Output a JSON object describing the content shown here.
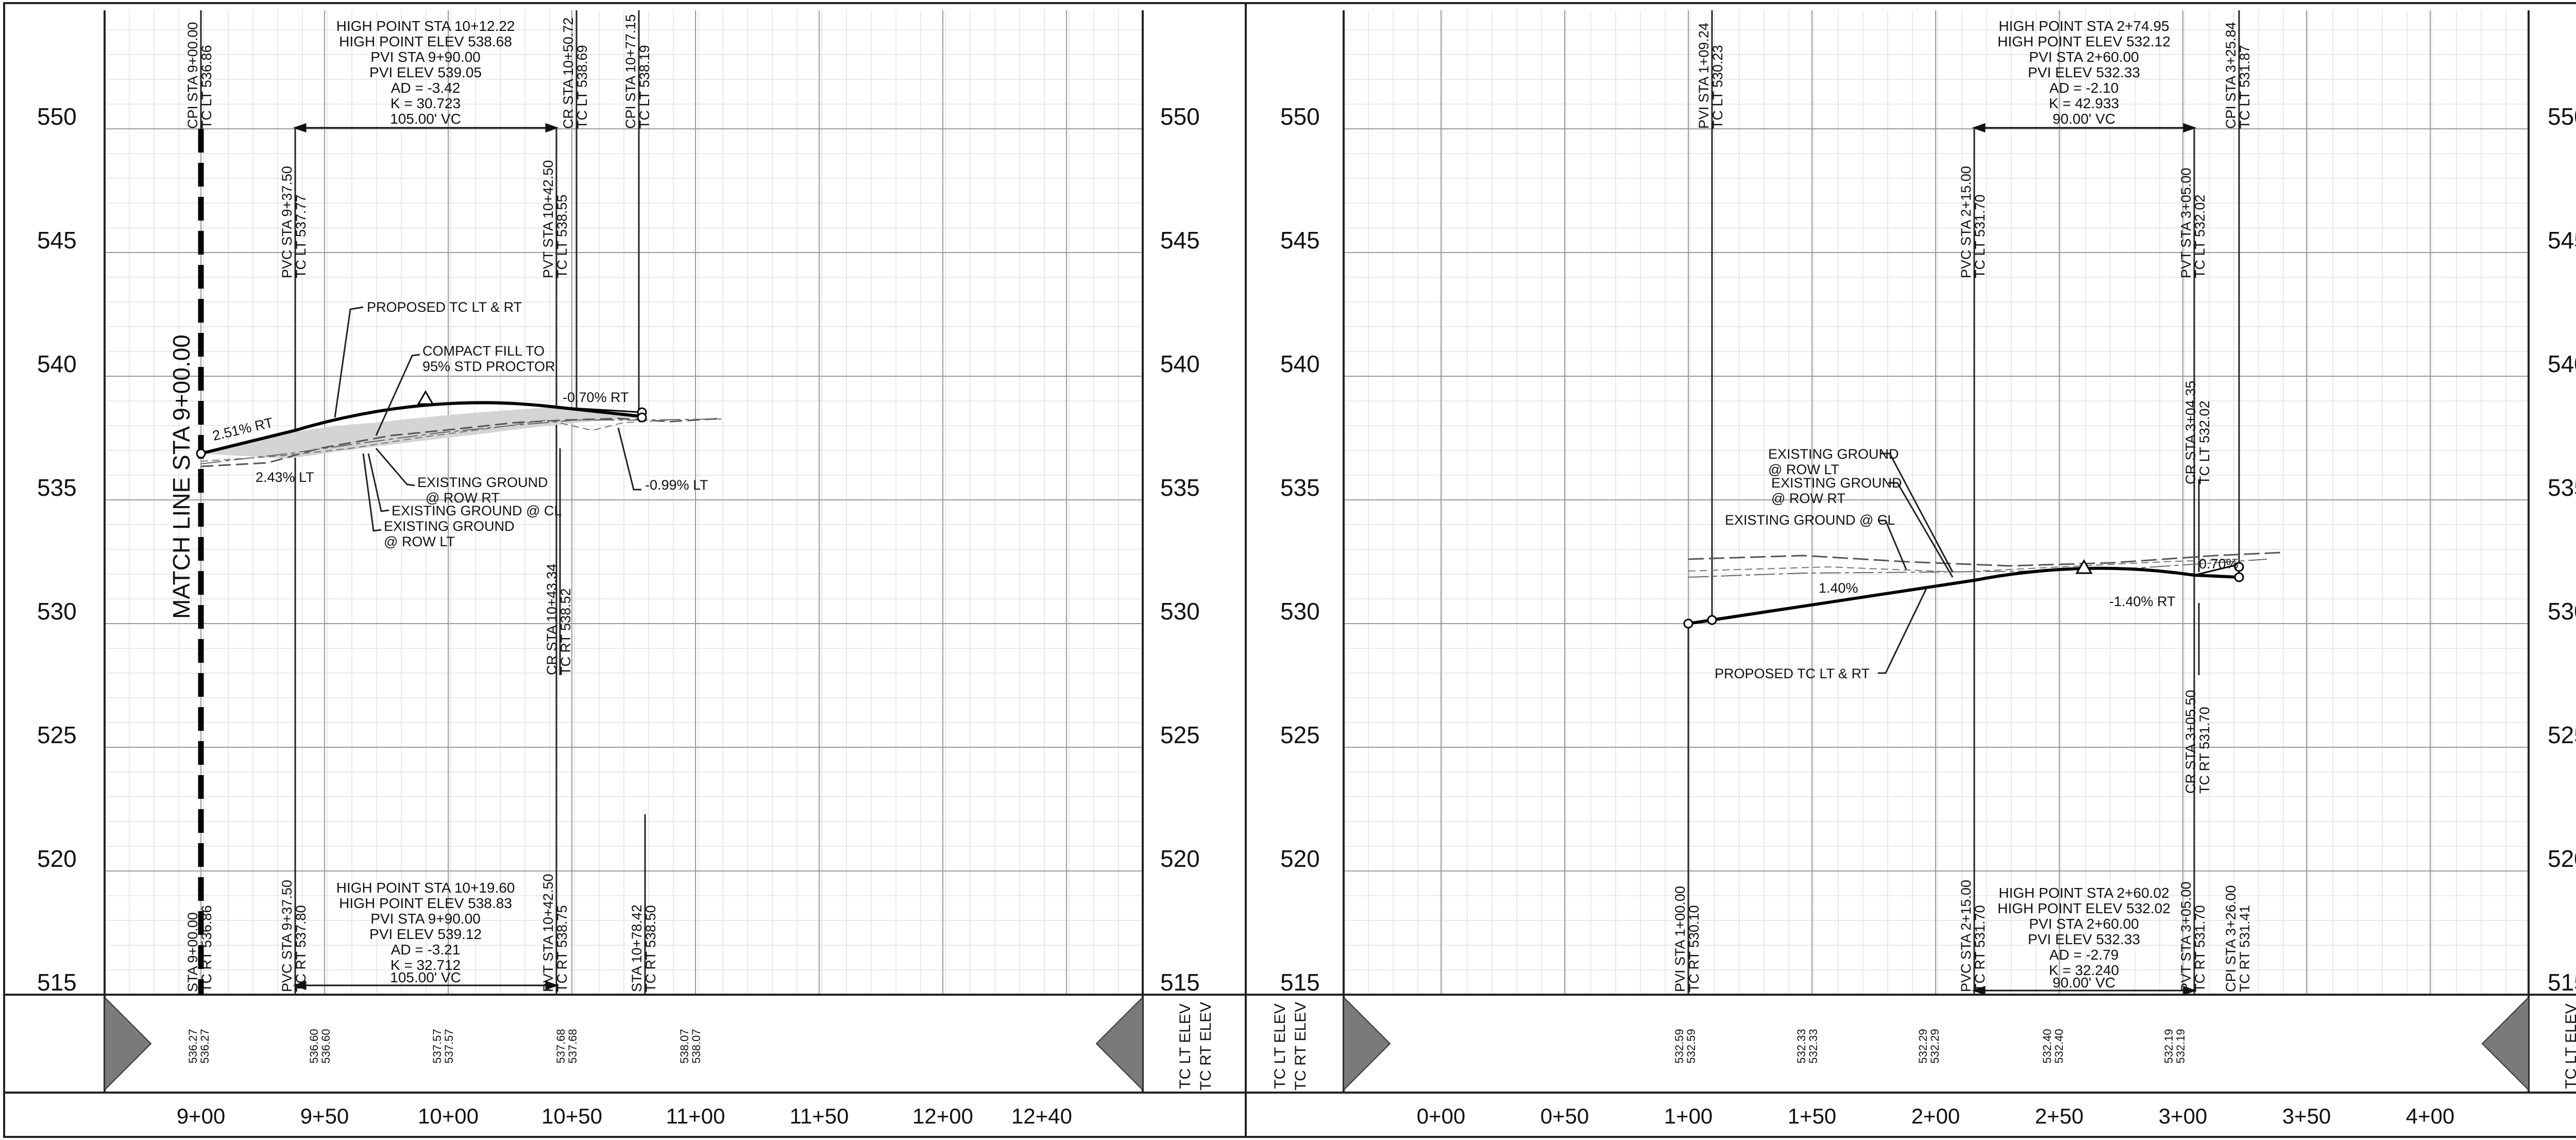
{
  "left_profile": {
    "match_line": "MATCH LINE STA 9+00.00",
    "elev_labels": [
      "550",
      "545",
      "540",
      "535",
      "530",
      "525",
      "520",
      "515"
    ],
    "station_labels": [
      "9+00",
      "9+50",
      "10+00",
      "10+50",
      "11+00",
      "11+50",
      "12+00",
      "12+40"
    ],
    "legend": [
      "TC LT ELEV",
      "TC RT ELEV"
    ],
    "top_curve_box": [
      "HIGH POINT STA 10+12.22",
      "HIGH POINT ELEV 538.68",
      "PVI STA 9+90.00",
      "PVI ELEV 539.05",
      "AD = -3.42",
      "K = 30.723",
      "105.00' VC"
    ],
    "bottom_curve_box": [
      "HIGH POINT STA 10+19.60",
      "HIGH POINT ELEV 538.83",
      "PVI STA 9+90.00",
      "PVI ELEV 539.12",
      "AD = -3.21",
      "K = 32.712",
      "105.00' VC"
    ],
    "top_vlabels": [
      {
        "a": "CPI STA 9+00.00",
        "b": "TC LT 536.86"
      },
      {
        "a": "PVC STA 9+37.50",
        "b": "TC LT 537.77"
      },
      {
        "a": "PVT STA 10+42.50",
        "b": "TC LT 538.55"
      },
      {
        "a": "CR STA 10+50.72",
        "b": "TC LT 538.69"
      },
      {
        "a": "CPI STA 10+77.15",
        "b": "TC LT 538.19"
      },
      {
        "a": "CR STA 10+43.34",
        "b": "TC RT 538.52"
      }
    ],
    "bottom_vlabels": [
      {
        "a": "STA 9+00.00",
        "b": "TC RT 536.86"
      },
      {
        "a": "PVC STA 9+37.50",
        "b": "TC RT 537.80"
      },
      {
        "a": "PVT STA 10+42.50",
        "b": "TC RT 538.75"
      },
      {
        "a": "STA 10+78.42",
        "b": "TC RT 538.50"
      }
    ],
    "annotations": {
      "proposed": "PROPOSED TC LT & RT",
      "compact1": "COMPACT FILL TO",
      "compact2": "95% STD PROCTOR",
      "grade_rt": "2.51% RT",
      "grade_lt": "2.43% LT",
      "grade_out_rt": "-0.70% RT",
      "grade_out_lt": "-0.99% LT",
      "eg_rt1": "EXISTING GROUND",
      "eg_rt2": "@ ROW RT",
      "eg_cl": "EXISTING GROUND @ CL",
      "eg_lt1": "EXISTING GROUND",
      "eg_lt2": "@ ROW LT"
    },
    "band_values": [
      {
        "lt": "536.27",
        "rt": "536.27"
      },
      {
        "lt": "536.60",
        "rt": "536.60"
      },
      {
        "lt": "537.57",
        "rt": "537.57"
      },
      {
        "lt": "537.68",
        "rt": "537.68"
      },
      {
        "lt": "538.07",
        "rt": "538.07"
      }
    ]
  },
  "right_profile": {
    "elev_labels": [
      "550",
      "545",
      "540",
      "535",
      "530",
      "525",
      "520",
      "515"
    ],
    "station_labels": [
      "0+00",
      "0+50",
      "1+00",
      "1+50",
      "2+00",
      "2+50",
      "3+00",
      "3+50",
      "4+00"
    ],
    "legend": [
      "TC LT ELEV",
      "TC RT ELEV"
    ],
    "top_curve_box": [
      "HIGH POINT STA 2+74.95",
      "HIGH POINT ELEV 532.12",
      "PVI STA 2+60.00",
      "PVI ELEV 532.33",
      "AD = -2.10",
      "K = 42.933",
      "90.00' VC"
    ],
    "bottom_curve_box": [
      "HIGH POINT STA 2+60.02",
      "HIGH POINT ELEV 532.02",
      "PVI STA 2+60.00",
      "PVI ELEV 532.33",
      "AD = -2.79",
      "K = 32.240",
      "90.00' VC"
    ],
    "top_vlabels": [
      {
        "a": "PVI STA 1+09.24",
        "b": "TC LT 530.23"
      },
      {
        "a": "PVC STA 2+15.00",
        "b": "TC LT 531.70"
      },
      {
        "a": "PVT STA 3+05.00",
        "b": "TC LT 532.02"
      },
      {
        "a": "CPI STA 3+25.84",
        "b": "TC LT 531.87"
      },
      {
        "a": "CR STA 3+04.35",
        "b": "TC LT 532.02"
      },
      {
        "a": "CR STA 3+05.50",
        "b": "TC RT 531.70"
      }
    ],
    "bottom_vlabels": [
      {
        "a": "PVI STA 1+00.00",
        "b": "TC RT 530.10"
      },
      {
        "a": "PVC STA 2+15.00",
        "b": "TC RT 531.70"
      },
      {
        "a": "PVT STA 3+05.00",
        "b": "TC RT 531.70"
      },
      {
        "a": "CPI STA 3+26.00",
        "b": "TC RT 531.41"
      }
    ],
    "annotations": {
      "eg_lt1": "EXISTING GROUND",
      "eg_lt2": "@ ROW LT",
      "eg_rt1": "EXISTING GROUND",
      "eg_rt2": "@ ROW RT",
      "eg_cl": "EXISTING GROUND @ CL",
      "grade_in": "1.40%",
      "grade_out_lt": "0.70%",
      "grade_out_rt": "-1.40% RT",
      "proposed": "PROPOSED TC LT & RT"
    },
    "band_values": [
      {
        "lt": "532.59",
        "rt": "532.59"
      },
      {
        "lt": "532.33",
        "rt": "532.33"
      },
      {
        "lt": "532.29",
        "rt": "532.29"
      },
      {
        "lt": "532.40",
        "rt": "532.40"
      },
      {
        "lt": "532.19",
        "rt": "532.19"
      }
    ]
  }
}
